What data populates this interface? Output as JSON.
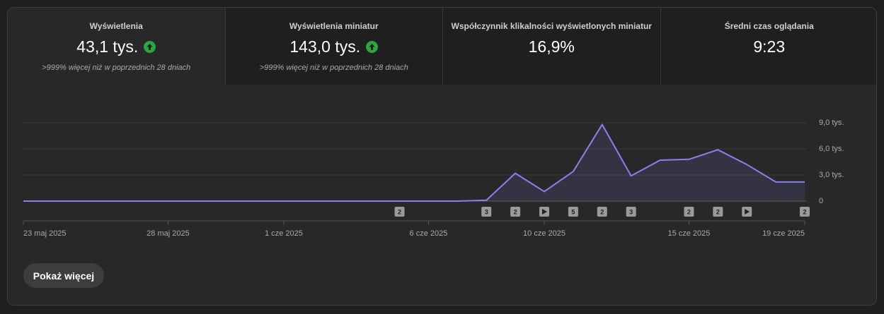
{
  "tabs": [
    {
      "title": "Wyświetlenia",
      "value": "43,1 tys.",
      "trend": "up",
      "change": ">999% więcej niż w poprzednich 28 dniach",
      "selected": true
    },
    {
      "title": "Wyświetlenia miniatur",
      "value": "143,0 tys.",
      "trend": "up",
      "change": ">999% więcej niż w poprzednich 28 dniach"
    },
    {
      "title": "Współczynnik klikalności wyświetlonych miniatur",
      "value": "16,9%"
    },
    {
      "title": "Średni czas oglądania",
      "value": "9:23"
    }
  ],
  "chart_data": {
    "type": "area",
    "categories": [
      "23 maj 2025",
      null,
      null,
      null,
      null,
      "28 maj 2025",
      null,
      null,
      null,
      "1 cze 2025",
      null,
      null,
      null,
      null,
      "6 cze 2025",
      null,
      null,
      null,
      "10 cze 2025",
      null,
      null,
      null,
      null,
      "15 cze 2025",
      null,
      null,
      null,
      "19 cze 2025"
    ],
    "values": [
      0,
      0,
      0,
      0,
      0,
      0,
      0,
      0,
      0,
      0,
      0,
      0,
      0,
      0,
      0,
      0,
      0.1,
      3.2,
      1.1,
      3.4,
      8.8,
      2.9,
      4.7,
      4.8,
      5.9,
      4.2,
      2.2,
      2.2
    ],
    "color": "#8a80f0",
    "ylim": [
      0,
      9
    ],
    "yticks": [
      0,
      {
        "value": 3,
        "label": "3,0 tys."
      },
      {
        "value": 6,
        "label": "6,0 tys."
      },
      {
        "value": 9,
        "label": "9,0 tys."
      }
    ],
    "grid": true,
    "markers": [
      null,
      null,
      null,
      null,
      null,
      null,
      null,
      null,
      null,
      null,
      null,
      null,
      null,
      "2",
      null,
      null,
      "3",
      "2",
      {
        "type": "video"
      },
      "5",
      "2",
      "3",
      null,
      "2",
      "2",
      {
        "type": "video"
      },
      null,
      "2"
    ]
  },
  "button": "Pokaż więcej"
}
